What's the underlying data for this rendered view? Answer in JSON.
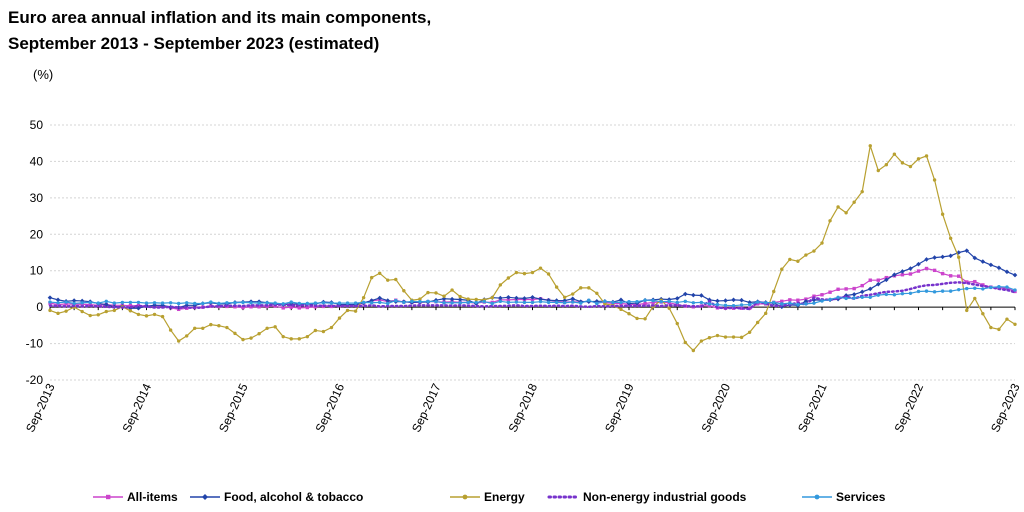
{
  "chart_data": {
    "type": "line",
    "title": [
      "Euro area annual inflation and its main components,",
      "September 2013 - September 2023 (estimated)"
    ],
    "unit_label": "(%)",
    "ylim": [
      -20,
      50
    ],
    "yticks": [
      -20,
      -10,
      0,
      10,
      20,
      30,
      40,
      50
    ],
    "grid": true,
    "x": [
      "Sep-2013",
      "Oct-2013",
      "Nov-2013",
      "Dec-2013",
      "Jan-2014",
      "Feb-2014",
      "Mar-2014",
      "Apr-2014",
      "May-2014",
      "Jun-2014",
      "Jul-2014",
      "Aug-2014",
      "Sep-2014",
      "Oct-2014",
      "Nov-2014",
      "Dec-2014",
      "Jan-2015",
      "Feb-2015",
      "Mar-2015",
      "Apr-2015",
      "May-2015",
      "Jun-2015",
      "Jul-2015",
      "Aug-2015",
      "Sep-2015",
      "Oct-2015",
      "Nov-2015",
      "Dec-2015",
      "Jan-2016",
      "Feb-2016",
      "Mar-2016",
      "Apr-2016",
      "May-2016",
      "Jun-2016",
      "Jul-2016",
      "Aug-2016",
      "Sep-2016",
      "Oct-2016",
      "Nov-2016",
      "Dec-2016",
      "Jan-2017",
      "Feb-2017",
      "Mar-2017",
      "Apr-2017",
      "May-2017",
      "Jun-2017",
      "Jul-2017",
      "Aug-2017",
      "Sep-2017",
      "Oct-2017",
      "Nov-2017",
      "Dec-2017",
      "Jan-2018",
      "Feb-2018",
      "Mar-2018",
      "Apr-2018",
      "May-2018",
      "Jun-2018",
      "Jul-2018",
      "Aug-2018",
      "Sep-2018",
      "Oct-2018",
      "Nov-2018",
      "Dec-2018",
      "Jan-2019",
      "Feb-2019",
      "Mar-2019",
      "Apr-2019",
      "May-2019",
      "Jun-2019",
      "Jul-2019",
      "Aug-2019",
      "Sep-2019",
      "Oct-2019",
      "Nov-2019",
      "Dec-2019",
      "Jan-2020",
      "Feb-2020",
      "Mar-2020",
      "Apr-2020",
      "May-2020",
      "Jun-2020",
      "Jul-2020",
      "Aug-2020",
      "Sep-2020",
      "Oct-2020",
      "Nov-2020",
      "Dec-2020",
      "Jan-2021",
      "Feb-2021",
      "Mar-2021",
      "Apr-2021",
      "May-2021",
      "Jun-2021",
      "Jul-2021",
      "Aug-2021",
      "Sep-2021",
      "Oct-2021",
      "Nov-2021",
      "Dec-2021",
      "Jan-2022",
      "Feb-2022",
      "Mar-2022",
      "Apr-2022",
      "May-2022",
      "Jun-2022",
      "Jul-2022",
      "Aug-2022",
      "Sep-2022",
      "Oct-2022",
      "Nov-2022",
      "Dec-2022",
      "Jan-2023",
      "Feb-2023",
      "Mar-2023",
      "Apr-2023",
      "May-2023",
      "Jun-2023",
      "Jul-2023",
      "Aug-2023",
      "Sep-2023"
    ],
    "xticks": [
      "Sep-2013",
      "Sep-2014",
      "Sep-2015",
      "Sep-2016",
      "Sep-2017",
      "Sep-2018",
      "Sep-2019",
      "Sep-2020",
      "Sep-2021",
      "Sep-2022",
      "Sep-2023"
    ],
    "series": [
      {
        "name": "All-items",
        "color": "#cc44cc",
        "marker": "square",
        "style": "solid",
        "values": [
          1.1,
          0.7,
          0.9,
          0.8,
          0.8,
          0.7,
          0.5,
          0.7,
          0.5,
          0.5,
          0.4,
          0.4,
          0.3,
          0.4,
          0.3,
          -0.2,
          -0.6,
          -0.3,
          -0.1,
          0.0,
          0.3,
          0.2,
          0.2,
          0.1,
          -0.1,
          0.1,
          0.1,
          0.2,
          0.3,
          -0.2,
          0.0,
          -0.2,
          -0.1,
          0.1,
          0.2,
          0.2,
          0.4,
          0.5,
          0.6,
          1.1,
          1.7,
          2.0,
          1.5,
          1.9,
          1.4,
          1.3,
          1.3,
          1.5,
          1.5,
          1.4,
          1.5,
          1.3,
          1.3,
          1.1,
          1.4,
          1.3,
          2.0,
          2.0,
          2.1,
          2.1,
          2.1,
          2.3,
          1.9,
          1.5,
          1.4,
          1.5,
          1.4,
          1.7,
          1.2,
          1.3,
          1.0,
          1.0,
          0.8,
          0.7,
          1.0,
          1.3,
          1.4,
          1.2,
          0.7,
          0.3,
          0.1,
          0.3,
          0.4,
          -0.2,
          -0.3,
          -0.3,
          -0.3,
          -0.3,
          0.9,
          0.9,
          1.3,
          1.6,
          2.0,
          1.9,
          2.2,
          3.0,
          3.4,
          4.1,
          4.9,
          5.0,
          5.1,
          5.9,
          7.4,
          7.4,
          8.1,
          8.6,
          8.9,
          9.1,
          9.9,
          10.6,
          10.1,
          9.2,
          8.6,
          8.5,
          6.9,
          7.0,
          6.1,
          5.5,
          5.3,
          5.2,
          4.3
        ]
      },
      {
        "name": "Food, alcohol & tobacco",
        "color": "#2244aa",
        "marker": "diamond",
        "style": "solid",
        "values": [
          2.6,
          2.0,
          1.6,
          1.8,
          1.7,
          1.5,
          1.0,
          0.7,
          0.1,
          0.2,
          -0.3,
          -0.3,
          0.3,
          0.5,
          0.5,
          0.0,
          -0.1,
          0.5,
          0.5,
          1.0,
          1.2,
          0.9,
          0.9,
          1.3,
          1.4,
          1.5,
          1.5,
          1.2,
          0.8,
          0.7,
          0.9,
          0.8,
          0.9,
          0.9,
          1.4,
          1.3,
          0.7,
          0.7,
          0.7,
          1.2,
          1.8,
          2.5,
          1.8,
          1.5,
          1.5,
          1.3,
          1.4,
          1.4,
          1.9,
          2.3,
          2.2,
          2.1,
          1.9,
          1.0,
          2.1,
          2.6,
          2.5,
          2.7,
          2.5,
          2.4,
          2.7,
          2.2,
          1.9,
          1.8,
          1.8,
          2.3,
          1.5,
          1.5,
          1.6,
          1.6,
          1.4,
          2.0,
          1.0,
          1.1,
          1.9,
          2.0,
          2.2,
          2.1,
          2.4,
          3.6,
          3.3,
          3.2,
          2.0,
          1.7,
          1.8,
          2.0,
          1.9,
          1.3,
          1.5,
          1.3,
          1.1,
          0.1,
          0.6,
          0.5,
          1.6,
          2.0,
          1.9,
          2.0,
          2.2,
          3.2,
          3.5,
          4.2,
          5.0,
          6.3,
          7.5,
          8.9,
          9.8,
          10.6,
          11.8,
          13.1,
          13.6,
          13.8,
          14.1,
          15.0,
          15.5,
          13.5,
          12.5,
          11.6,
          10.8,
          9.7,
          8.8
        ]
      },
      {
        "name": "Energy",
        "color": "#b8a030",
        "marker": "circle",
        "style": "solid",
        "values": [
          -0.9,
          -1.7,
          -1.1,
          0.0,
          -1.2,
          -2.3,
          -2.1,
          -1.2,
          -0.9,
          0.1,
          -1.0,
          -2.0,
          -2.4,
          -2.0,
          -2.6,
          -6.3,
          -9.3,
          -7.9,
          -5.8,
          -5.8,
          -4.8,
          -5.1,
          -5.6,
          -7.2,
          -8.9,
          -8.5,
          -7.3,
          -5.8,
          -5.4,
          -8.1,
          -8.7,
          -8.7,
          -8.1,
          -6.4,
          -6.7,
          -5.6,
          -3.0,
          -0.9,
          -1.1,
          2.6,
          8.1,
          9.3,
          7.4,
          7.6,
          4.5,
          1.9,
          2.2,
          4.0,
          3.9,
          3.0,
          4.7,
          2.9,
          2.2,
          2.1,
          2.0,
          2.6,
          6.1,
          8.0,
          9.5,
          9.2,
          9.5,
          10.7,
          9.1,
          5.5,
          2.7,
          3.6,
          5.3,
          5.3,
          3.8,
          0.9,
          0.5,
          -0.6,
          -1.8,
          -3.1,
          -3.2,
          0.2,
          1.9,
          -0.3,
          -4.5,
          -9.7,
          -11.9,
          -9.3,
          -8.4,
          -7.8,
          -8.2,
          -8.2,
          -8.3,
          -6.9,
          -4.2,
          -1.7,
          4.3,
          10.4,
          13.1,
          12.6,
          14.3,
          15.4,
          17.6,
          23.7,
          27.5,
          25.9,
          28.8,
          31.7,
          44.3,
          37.5,
          39.1,
          42.0,
          39.6,
          38.6,
          40.7,
          41.5,
          34.9,
          25.5,
          18.9,
          13.7,
          -0.9,
          2.4,
          -1.8,
          -5.6,
          -6.1,
          -3.3,
          -4.7
        ]
      },
      {
        "name": "Non-energy industrial goods",
        "color": "#7733cc",
        "marker": "none",
        "style": "dotted",
        "values": [
          0.4,
          0.3,
          0.2,
          0.3,
          0.2,
          0.3,
          0.2,
          0.1,
          0.0,
          -0.1,
          0.0,
          0.3,
          0.2,
          -0.1,
          -0.1,
          0.1,
          -0.1,
          -0.1,
          -0.2,
          -0.1,
          0.2,
          0.2,
          0.4,
          0.4,
          0.3,
          0.5,
          0.5,
          0.5,
          0.7,
          0.7,
          0.5,
          0.5,
          0.5,
          0.4,
          0.4,
          0.3,
          0.3,
          0.3,
          0.3,
          0.3,
          0.5,
          0.2,
          0.3,
          0.3,
          0.3,
          0.4,
          0.5,
          0.5,
          0.5,
          0.5,
          0.4,
          0.5,
          0.4,
          0.3,
          0.2,
          0.3,
          0.3,
          0.4,
          0.5,
          0.3,
          0.3,
          0.4,
          0.3,
          0.4,
          0.3,
          0.4,
          0.2,
          0.1,
          0.3,
          0.2,
          0.3,
          0.3,
          0.3,
          0.3,
          0.4,
          0.5,
          0.3,
          0.5,
          0.5,
          0.3,
          0.2,
          0.2,
          1.6,
          -0.1,
          -0.3,
          -0.2,
          -0.3,
          -0.5,
          1.5,
          1.0,
          0.3,
          0.4,
          0.7,
          1.2,
          0.7,
          2.6,
          2.1,
          2.0,
          2.4,
          2.9,
          2.3,
          3.1,
          3.4,
          3.8,
          4.2,
          4.3,
          4.5,
          5.0,
          5.6,
          6.0,
          6.1,
          6.4,
          6.7,
          6.8,
          6.6,
          6.2,
          5.8,
          5.5,
          5.0,
          4.7,
          4.1
        ]
      },
      {
        "name": "Services",
        "color": "#3399dd",
        "marker": "circle",
        "style": "solid",
        "values": [
          1.4,
          1.2,
          1.4,
          1.0,
          1.2,
          1.3,
          1.1,
          1.6,
          1.1,
          1.3,
          1.3,
          1.3,
          1.1,
          1.2,
          1.1,
          1.2,
          1.0,
          1.2,
          1.0,
          1.0,
          1.4,
          1.0,
          1.2,
          1.2,
          1.3,
          1.2,
          1.1,
          1.2,
          1.1,
          0.9,
          1.4,
          1.0,
          1.0,
          1.1,
          1.2,
          1.1,
          1.1,
          1.1,
          1.1,
          1.3,
          1.2,
          1.3,
          1.0,
          1.8,
          1.3,
          1.6,
          1.5,
          1.6,
          1.5,
          1.2,
          1.2,
          1.2,
          1.3,
          1.3,
          1.5,
          1.0,
          1.6,
          1.3,
          1.4,
          1.3,
          1.3,
          1.5,
          1.3,
          1.3,
          1.2,
          1.4,
          1.1,
          1.9,
          1.0,
          1.6,
          1.3,
          1.3,
          1.5,
          1.5,
          1.9,
          1.8,
          1.5,
          1.6,
          1.3,
          1.6,
          1.2,
          1.3,
          0.9,
          0.7,
          0.5,
          0.4,
          0.6,
          0.7,
          1.4,
          1.2,
          1.3,
          0.9,
          1.1,
          0.7,
          0.9,
          1.1,
          1.7,
          2.1,
          2.7,
          2.4,
          2.5,
          2.7,
          2.7,
          3.3,
          3.5,
          3.4,
          3.7,
          3.8,
          4.3,
          4.4,
          4.2,
          4.4,
          4.4,
          4.8,
          5.1,
          5.2,
          5.0,
          5.4,
          5.6,
          5.5,
          4.7
        ]
      }
    ]
  }
}
